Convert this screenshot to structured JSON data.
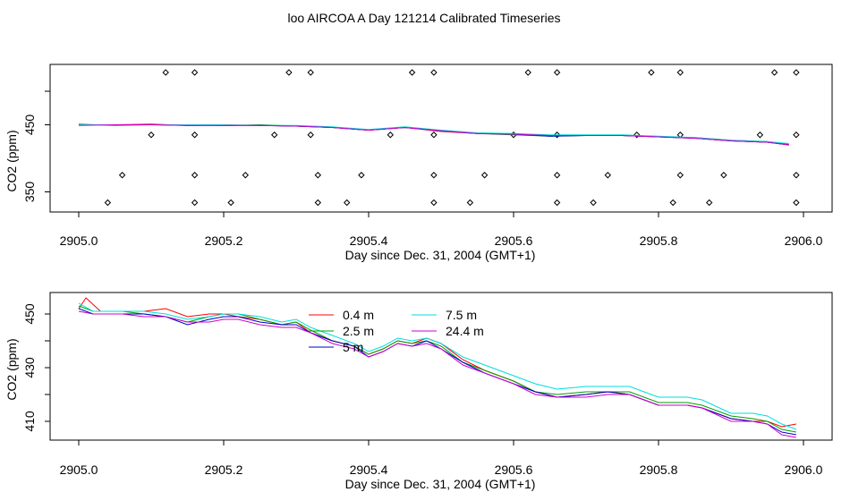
{
  "title": "loo AIRCOA A  Day 121214  Calibrated Timeseries",
  "chart_data": [
    {
      "type": "line",
      "panel": "top",
      "xlabel": "Day since Dec. 31, 2004 (GMT+1)",
      "ylabel": "CO2 (ppm)",
      "xlim": [
        2905.0,
        2906.0
      ],
      "ylim": [
        320,
        540
      ],
      "xticks": [
        "2905.0",
        "2905.2",
        "2905.4",
        "2905.6",
        "2905.8",
        "2906.0"
      ],
      "yticks": [
        "350",
        "450"
      ],
      "grid": false,
      "series": [
        {
          "color": "#ff0000",
          "x": [
            2905.0,
            2905.05,
            2905.1,
            2905.15,
            2905.2,
            2905.25,
            2905.3,
            2905.35,
            2905.4,
            2905.45,
            2905.5,
            2905.55,
            2905.6,
            2905.65,
            2905.7,
            2905.75,
            2905.8,
            2905.85,
            2905.9,
            2905.95,
            2905.98
          ],
          "values": [
            450,
            450,
            451,
            449,
            450,
            449,
            448,
            446,
            442,
            446,
            440,
            437,
            436,
            434,
            434,
            434,
            432,
            431,
            427,
            425,
            421
          ]
        },
        {
          "color": "#00a000",
          "x": [
            2905.0,
            2905.05,
            2905.1,
            2905.15,
            2905.2,
            2905.25,
            2905.3,
            2905.35,
            2905.4,
            2905.45,
            2905.5,
            2905.55,
            2905.6,
            2905.65,
            2905.7,
            2905.75,
            2905.8,
            2905.85,
            2905.9,
            2905.95,
            2905.98
          ],
          "values": [
            451,
            449,
            450,
            450,
            449,
            450,
            448,
            446,
            442,
            446,
            441,
            437,
            435,
            433,
            434,
            434,
            432,
            430,
            426,
            424,
            420
          ]
        },
        {
          "color": "#0000cc",
          "x": [
            2905.0,
            2905.05,
            2905.1,
            2905.15,
            2905.2,
            2905.25,
            2905.3,
            2905.35,
            2905.4,
            2905.45,
            2905.5,
            2905.55,
            2905.6,
            2905.65,
            2905.7,
            2905.75,
            2905.8,
            2905.85,
            2905.9,
            2905.95,
            2905.98
          ],
          "values": [
            450,
            450,
            450,
            449,
            449,
            449,
            448,
            446,
            442,
            446,
            441,
            437,
            436,
            433,
            434,
            434,
            432,
            430,
            426,
            424,
            420
          ]
        },
        {
          "color": "#00dddd",
          "x": [
            2905.0,
            2905.05,
            2905.1,
            2905.15,
            2905.2,
            2905.25,
            2905.3,
            2905.35,
            2905.4,
            2905.45,
            2905.5,
            2905.55,
            2905.6,
            2905.65,
            2905.7,
            2905.75,
            2905.8,
            2905.85,
            2905.9,
            2905.95,
            2905.98
          ],
          "values": [
            450,
            450,
            450,
            450,
            450,
            449,
            449,
            447,
            443,
            447,
            442,
            438,
            437,
            435,
            435,
            435,
            433,
            431,
            427,
            425,
            422
          ]
        },
        {
          "color": "#cc00cc",
          "x": [
            2905.0,
            2905.05,
            2905.1,
            2905.15,
            2905.2,
            2905.25,
            2905.3,
            2905.35,
            2905.4,
            2905.45,
            2905.5,
            2905.55,
            2905.6,
            2905.65,
            2905.7,
            2905.75,
            2905.8,
            2905.85,
            2905.9,
            2905.95,
            2905.98
          ],
          "values": [
            449,
            450,
            450,
            449,
            449,
            449,
            448,
            446,
            442,
            446,
            441,
            437,
            436,
            434,
            434,
            434,
            432,
            430,
            426,
            424,
            420
          ]
        }
      ],
      "markers": {
        "symbol": "diamond",
        "x": [
          2905.12,
          2905.16,
          2905.29,
          2905.32,
          2905.46,
          2905.49,
          2905.62,
          2905.66,
          2905.79,
          2905.83,
          2905.96,
          2905.99,
          2905.1,
          2905.16,
          2905.27,
          2905.32,
          2905.43,
          2905.49,
          2905.6,
          2905.66,
          2905.77,
          2905.83,
          2905.94,
          2905.99,
          2905.06,
          2905.16,
          2905.23,
          2905.33,
          2905.39,
          2905.49,
          2905.56,
          2905.66,
          2905.73,
          2905.83,
          2905.89,
          2905.99,
          2905.04,
          2905.16,
          2905.21,
          2905.33,
          2905.37,
          2905.49,
          2905.54,
          2905.66,
          2905.71,
          2905.82,
          2905.87,
          2905.99
        ],
        "values": [
          528,
          528,
          528,
          528,
          528,
          528,
          528,
          528,
          528,
          528,
          528,
          528,
          435,
          435,
          435,
          435,
          435,
          435,
          435,
          435,
          435,
          435,
          435,
          435,
          375,
          375,
          375,
          375,
          375,
          375,
          375,
          375,
          375,
          375,
          375,
          375,
          334,
          334,
          334,
          334,
          334,
          334,
          334,
          334,
          334,
          334,
          334,
          334
        ]
      }
    },
    {
      "type": "line",
      "panel": "bottom",
      "xlabel": "Day since Dec. 31, 2004 (GMT+1)",
      "ylabel": "CO2 (ppm)",
      "xlim": [
        2905.0,
        2906.0
      ],
      "ylim": [
        403,
        458
      ],
      "xticks": [
        "2905.0",
        "2905.2",
        "2905.4",
        "2905.6",
        "2905.8",
        "2906.0"
      ],
      "yticks": [
        "410",
        "430",
        "450"
      ],
      "grid": false,
      "legend_position": "top-center",
      "series": [
        {
          "name": "0.4 m",
          "color": "#ff0000",
          "x": [
            2905.0,
            2905.01,
            2905.03,
            2905.06,
            2905.09,
            2905.12,
            2905.15,
            2905.18,
            2905.2,
            2905.22,
            2905.25,
            2905.28,
            2905.3,
            2905.32,
            2905.35,
            2905.38,
            2905.4,
            2905.42,
            2905.44,
            2905.46,
            2905.48,
            2905.5,
            2905.53,
            2905.56,
            2905.6,
            2905.63,
            2905.66,
            2905.7,
            2905.73,
            2905.76,
            2905.8,
            2905.84,
            2905.86,
            2905.9,
            2905.93,
            2905.95,
            2905.97,
            2905.99
          ],
          "values": [
            452,
            456,
            451,
            451,
            451,
            452,
            449,
            450,
            450,
            449,
            448,
            446,
            447,
            443,
            440,
            438,
            435,
            437,
            440,
            439,
            441,
            439,
            433,
            429,
            425,
            421,
            419,
            420,
            421,
            420,
            416,
            416,
            415,
            411,
            410,
            410,
            408,
            409
          ]
        },
        {
          "name": "2.5 m",
          "color": "#00a000",
          "x": [
            2905.0,
            2905.02,
            2905.06,
            2905.09,
            2905.12,
            2905.15,
            2905.18,
            2905.2,
            2905.22,
            2905.25,
            2905.28,
            2905.3,
            2905.32,
            2905.35,
            2905.38,
            2905.4,
            2905.42,
            2905.44,
            2905.46,
            2905.48,
            2905.5,
            2905.53,
            2905.56,
            2905.6,
            2905.63,
            2905.66,
            2905.7,
            2905.73,
            2905.76,
            2905.8,
            2905.84,
            2905.86,
            2905.9,
            2905.93,
            2905.95,
            2905.97,
            2905.99
          ],
          "values": [
            453,
            451,
            451,
            450,
            449,
            447,
            449,
            450,
            450,
            448,
            446,
            447,
            444,
            440,
            438,
            435,
            437,
            440,
            439,
            440,
            438,
            432,
            429,
            425,
            421,
            420,
            421,
            421,
            421,
            417,
            417,
            416,
            412,
            411,
            410,
            407,
            406
          ]
        },
        {
          "name": "5 m",
          "color": "#0000cc",
          "x": [
            2905.0,
            2905.02,
            2905.06,
            2905.09,
            2905.12,
            2905.15,
            2905.18,
            2905.2,
            2905.22,
            2905.25,
            2905.28,
            2905.3,
            2905.32,
            2905.35,
            2905.38,
            2905.4,
            2905.42,
            2905.44,
            2905.46,
            2905.48,
            2905.5,
            2905.53,
            2905.56,
            2905.6,
            2905.63,
            2905.66,
            2905.7,
            2905.73,
            2905.76,
            2905.8,
            2905.84,
            2905.86,
            2905.9,
            2905.93,
            2905.95,
            2905.97,
            2905.99
          ],
          "values": [
            452,
            450,
            450,
            450,
            449,
            446,
            448,
            449,
            449,
            447,
            446,
            446,
            443,
            440,
            438,
            434,
            436,
            439,
            438,
            440,
            437,
            432,
            428,
            424,
            421,
            419,
            420,
            421,
            420,
            416,
            416,
            415,
            411,
            410,
            409,
            406,
            405
          ]
        },
        {
          "name": "7.5 m",
          "color": "#00dddd",
          "x": [
            2905.0,
            2905.02,
            2905.06,
            2905.09,
            2905.12,
            2905.15,
            2905.18,
            2905.2,
            2905.22,
            2905.25,
            2905.28,
            2905.3,
            2905.32,
            2905.35,
            2905.38,
            2905.4,
            2905.42,
            2905.44,
            2905.46,
            2905.48,
            2905.5,
            2905.53,
            2905.56,
            2905.6,
            2905.63,
            2905.66,
            2905.7,
            2905.73,
            2905.76,
            2905.8,
            2905.84,
            2905.86,
            2905.9,
            2905.93,
            2905.95,
            2905.97,
            2905.99
          ],
          "values": [
            454,
            451,
            451,
            451,
            450,
            448,
            449,
            450,
            450,
            449,
            447,
            448,
            445,
            442,
            439,
            436,
            438,
            441,
            440,
            441,
            439,
            434,
            431,
            427,
            424,
            422,
            423,
            423,
            423,
            419,
            419,
            418,
            413,
            413,
            412,
            409,
            407
          ]
        },
        {
          "name": "24.4 m",
          "color": "#cc00cc",
          "x": [
            2905.0,
            2905.02,
            2905.06,
            2905.09,
            2905.12,
            2905.15,
            2905.18,
            2905.2,
            2905.22,
            2905.25,
            2905.28,
            2905.3,
            2905.32,
            2905.35,
            2905.38,
            2905.4,
            2905.42,
            2905.44,
            2905.46,
            2905.48,
            2905.5,
            2905.53,
            2905.56,
            2905.6,
            2905.63,
            2905.66,
            2905.7,
            2905.73,
            2905.76,
            2905.8,
            2905.84,
            2905.86,
            2905.9,
            2905.93,
            2905.95,
            2905.97,
            2905.99
          ],
          "values": [
            451,
            450,
            450,
            449,
            449,
            447,
            447,
            448,
            448,
            446,
            445,
            445,
            443,
            439,
            437,
            434,
            436,
            439,
            438,
            439,
            437,
            431,
            428,
            424,
            420,
            419,
            419,
            420,
            420,
            416,
            416,
            415,
            410,
            410,
            409,
            405,
            404
          ]
        }
      ]
    }
  ]
}
